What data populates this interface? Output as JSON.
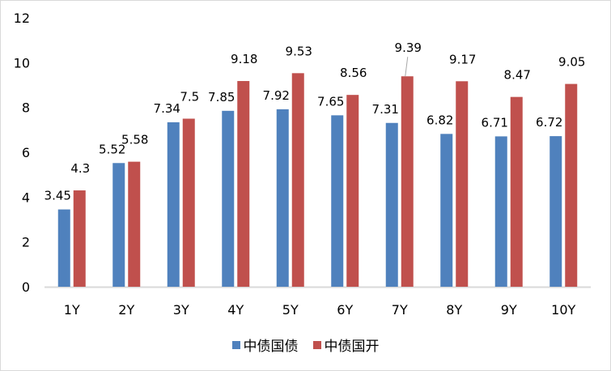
{
  "chart_data": {
    "type": "bar",
    "title": "",
    "xlabel": "",
    "ylabel": "",
    "categories": [
      "1Y",
      "2Y",
      "3Y",
      "4Y",
      "5Y",
      "6Y",
      "7Y",
      "8Y",
      "9Y",
      "10Y"
    ],
    "series": [
      {
        "name": "中债国债",
        "color": "#4f81bd",
        "values": [
          3.45,
          5.52,
          7.34,
          7.85,
          7.92,
          7.65,
          7.31,
          6.82,
          6.71,
          6.72
        ]
      },
      {
        "name": "中债国开",
        "color": "#c0504d",
        "values": [
          4.3,
          5.58,
          7.5,
          9.18,
          9.53,
          8.56,
          9.39,
          9.17,
          8.47,
          9.05
        ]
      }
    ],
    "ylim": [
      0,
      12
    ],
    "yticks": [
      0,
      2,
      4,
      6,
      8,
      10,
      12
    ],
    "grid": false,
    "legend_position": "bottom",
    "data_labels": true
  },
  "legend": {
    "items": [
      {
        "label": "中债国债",
        "color": "#4f81bd"
      },
      {
        "label": "中债国开",
        "color": "#c0504d"
      }
    ]
  }
}
